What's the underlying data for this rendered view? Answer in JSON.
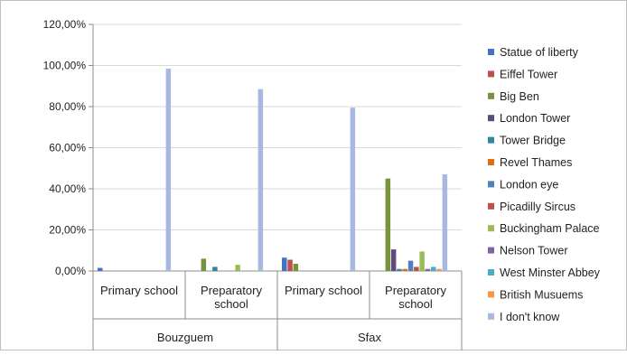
{
  "chart_data": {
    "type": "bar",
    "title": "",
    "xlabel": "",
    "ylabel": "",
    "ylim": [
      0,
      120
    ],
    "y_ticks": [
      "0,00%",
      "20,00%",
      "40,00%",
      "60,00%",
      "80,00%",
      "100,00%",
      "120,00%"
    ],
    "y_tick_values": [
      0,
      20,
      40,
      60,
      80,
      100,
      120
    ],
    "grid": true,
    "legend_position": "right",
    "groups": [
      "Bouzguem",
      "Sfax"
    ],
    "categories": [
      "Primary school",
      "Preparatory school",
      "Primary school",
      "Preparatory school"
    ],
    "category_lines": [
      [
        "Primary school"
      ],
      [
        "Preparatory",
        "school"
      ],
      [
        "Primary school"
      ],
      [
        "Preparatory",
        "school"
      ]
    ],
    "series": [
      {
        "name": "Statue of liberty",
        "color": "#4472C4",
        "values": [
          1.5,
          0,
          6.5,
          0
        ]
      },
      {
        "name": "Eiffel Tower",
        "color": "#C0504D",
        "values": [
          0,
          0,
          5.5,
          0
        ]
      },
      {
        "name": "Big Ben",
        "color": "#77933C",
        "values": [
          0,
          6,
          3.5,
          45
        ]
      },
      {
        "name": "London Tower",
        "color": "#604A7B",
        "values": [
          0,
          0,
          0,
          10.5
        ]
      },
      {
        "name": "Tower Bridge",
        "color": "#31859C",
        "values": [
          0,
          2,
          0,
          1
        ]
      },
      {
        "name": "Revel Thames",
        "color": "#E46C0A",
        "values": [
          0,
          0,
          0,
          1
        ]
      },
      {
        "name": "London eye",
        "color": "#4F81BD",
        "values": [
          0,
          0,
          0,
          5
        ]
      },
      {
        "name": "Picadilly Sircus",
        "color": "#C0504D",
        "values": [
          0,
          0,
          0,
          2
        ]
      },
      {
        "name": "Buckingham Palace",
        "color": "#9BBB59",
        "values": [
          0,
          3,
          0,
          9.5
        ]
      },
      {
        "name": "Nelson Tower",
        "color": "#8064A2",
        "values": [
          0,
          0,
          0,
          1
        ]
      },
      {
        "name": "West Minster Abbey",
        "color": "#4BACC6",
        "values": [
          0,
          0,
          0,
          2
        ]
      },
      {
        "name": "British Musuems",
        "color": "#F79646",
        "values": [
          0,
          0,
          0,
          1
        ]
      },
      {
        "name": "I don't know",
        "color": "#A9B8E0",
        "values": [
          98.5,
          88.5,
          79.5,
          47
        ]
      }
    ]
  }
}
